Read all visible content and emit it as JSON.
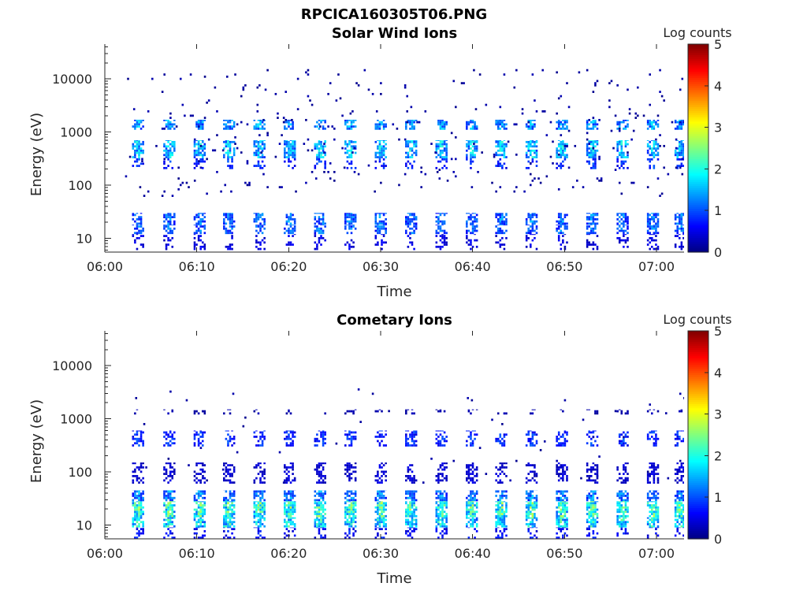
{
  "figure_title": "RPCICA160305T06.PNG",
  "colors": {
    "axes": "#262626",
    "background": "#ffffff"
  },
  "chart_data": [
    {
      "type": "heatmap",
      "title": "Solar Wind Ions",
      "xlabel": "Time",
      "ylabel": "Energy (eV)",
      "yscale": "log",
      "xlim": [
        "06:00",
        "07:03"
      ],
      "ylim": [
        5.5,
        45000
      ],
      "xticks": [
        "06:00",
        "06:10",
        "06:20",
        "06:30",
        "06:40",
        "06:50",
        "07:00"
      ],
      "yticks": [
        "10",
        "100",
        "1000",
        "10000"
      ],
      "colorbar": {
        "label": "Log counts",
        "range": [
          0,
          5
        ],
        "ticks": [
          "0",
          "1",
          "2",
          "3",
          "4",
          "5"
        ],
        "colormap": "jet"
      },
      "sweep_times_min": [
        3.4,
        6.8,
        10.1,
        13.3,
        16.6,
        19.9,
        23.2,
        26.5,
        29.8,
        33.1,
        36.4,
        39.7,
        42.9,
        46.2,
        49.5,
        52.8,
        56.1,
        59.4,
        62.4
      ],
      "bands": [
        {
          "emin": 1100,
          "emax": 1700,
          "level": 1.6,
          "fill": 0.8
        },
        {
          "emin": 320,
          "emax": 700,
          "level": 1.9,
          "fill": 0.85
        },
        {
          "emin": 200,
          "emax": 320,
          "level": 1.0,
          "fill": 0.4
        },
        {
          "emin": 18,
          "emax": 30,
          "level": 1.4,
          "fill": 0.8
        },
        {
          "emin": 12,
          "emax": 18,
          "level": 1.3,
          "fill": 0.7
        },
        {
          "emin": 6,
          "emax": 12,
          "level": 0.6,
          "fill": 0.35
        }
      ],
      "background_noise": {
        "emin": 60,
        "emax": 15000,
        "density": 0.018,
        "level": 0.2
      }
    },
    {
      "type": "heatmap",
      "title": "Cometary Ions",
      "xlabel": "Time",
      "ylabel": "Energy (eV)",
      "yscale": "log",
      "xlim": [
        "06:00",
        "07:03"
      ],
      "ylim": [
        5.5,
        45000
      ],
      "xticks": [
        "06:00",
        "06:10",
        "06:20",
        "06:30",
        "06:40",
        "06:50",
        "07:00"
      ],
      "yticks": [
        "10",
        "100",
        "1000",
        "10000"
      ],
      "colorbar": {
        "label": "Log counts",
        "range": [
          0,
          5
        ],
        "ticks": [
          "0",
          "1",
          "2",
          "3",
          "4",
          "5"
        ],
        "colormap": "jet"
      },
      "sweep_times_min": [
        3.4,
        6.8,
        10.1,
        13.3,
        16.6,
        19.9,
        23.2,
        26.5,
        29.8,
        33.1,
        36.4,
        39.7,
        42.9,
        46.2,
        49.5,
        52.8,
        56.1,
        59.4,
        62.4
      ],
      "bands": [
        {
          "emin": 1200,
          "emax": 1500,
          "level": 0.3,
          "fill": 0.3
        },
        {
          "emin": 300,
          "emax": 600,
          "level": 1.0,
          "fill": 0.6
        },
        {
          "emin": 60,
          "emax": 150,
          "level": 0.5,
          "fill": 0.55
        },
        {
          "emin": 28,
          "emax": 45,
          "level": 1.5,
          "fill": 0.85
        },
        {
          "emin": 14,
          "emax": 28,
          "level": 2.5,
          "fill": 0.95
        },
        {
          "emin": 9,
          "emax": 14,
          "level": 2.2,
          "fill": 0.9
        },
        {
          "emin": 5.5,
          "emax": 9,
          "level": 0.8,
          "fill": 0.4
        }
      ],
      "background_noise": {
        "emin": 60,
        "emax": 3500,
        "density": 0.004,
        "level": 0.2
      }
    }
  ]
}
